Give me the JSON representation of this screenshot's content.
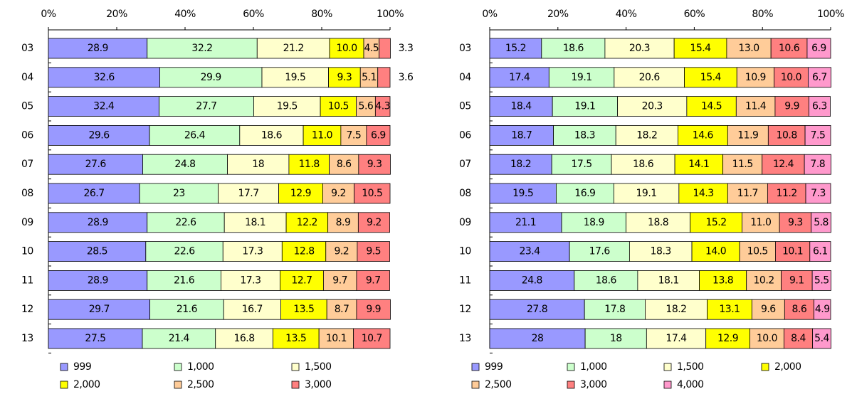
{
  "chart_data": [
    {
      "type": "stacked_barh",
      "categories": [
        "03",
        "04",
        "05",
        "06",
        "07",
        "08",
        "09",
        "10",
        "11",
        "12",
        "13"
      ],
      "xlim": [
        0,
        100
      ],
      "xticks": [
        {
          "value": 0,
          "label": "0%"
        },
        {
          "value": 20,
          "label": "20%"
        },
        {
          "value": 40,
          "label": "40%"
        },
        {
          "value": 60,
          "label": "60%"
        },
        {
          "value": 80,
          "label": "80%"
        },
        {
          "value": 100,
          "label": "100%"
        }
      ],
      "series": [
        {
          "name": "999",
          "color": "#9999ff",
          "values": [
            28.9,
            32.6,
            32.4,
            29.6,
            27.6,
            26.7,
            28.9,
            28.5,
            28.9,
            29.7,
            27.5
          ]
        },
        {
          "name": "1,000",
          "color": "#ccffcc",
          "values": [
            32.2,
            29.9,
            27.7,
            26.4,
            24.8,
            23.0,
            22.6,
            22.6,
            21.6,
            21.6,
            21.4
          ]
        },
        {
          "name": "1,500",
          "color": "#ffffcc",
          "values": [
            21.2,
            19.5,
            19.5,
            18.6,
            18.0,
            17.7,
            18.1,
            17.3,
            17.3,
            16.7,
            16.8
          ]
        },
        {
          "name": "2,000",
          "color": "#ffff00",
          "values": [
            10.0,
            9.3,
            10.5,
            11.0,
            11.8,
            12.9,
            12.2,
            12.8,
            12.7,
            13.5,
            13.5
          ],
          "value_labels": [
            "10.0",
            "9.3",
            "10.5",
            "11.0",
            "11.8",
            "12.9",
            "12.2",
            "12.8",
            "12.7",
            "13.5",
            "13.5"
          ]
        },
        {
          "name": "2,500",
          "color": "#ffcc99",
          "values": [
            4.5,
            5.1,
            5.6,
            7.5,
            8.6,
            9.2,
            8.9,
            9.2,
            9.7,
            8.7,
            10.1
          ]
        },
        {
          "name": "3,000",
          "color": "#ff8080",
          "values": [
            3.3,
            3.6,
            4.3,
            6.9,
            9.3,
            10.5,
            9.2,
            9.5,
            9.7,
            9.9,
            10.7
          ]
        }
      ]
    },
    {
      "type": "stacked_barh",
      "categories": [
        "03",
        "04",
        "05",
        "06",
        "07",
        "08",
        "09",
        "10",
        "11",
        "12",
        "13"
      ],
      "xlim": [
        0,
        100
      ],
      "xticks": [
        {
          "value": 0,
          "label": "0%"
        },
        {
          "value": 20,
          "label": "20%"
        },
        {
          "value": 40,
          "label": "40%"
        },
        {
          "value": 60,
          "label": "60%"
        },
        {
          "value": 80,
          "label": "80%"
        },
        {
          "value": 100,
          "label": "100%"
        }
      ],
      "series": [
        {
          "name": "999",
          "color": "#9999ff",
          "values": [
            15.2,
            17.4,
            18.4,
            18.7,
            18.2,
            19.5,
            21.1,
            23.4,
            24.8,
            27.8,
            28.0
          ]
        },
        {
          "name": "1,000",
          "color": "#ccffcc",
          "values": [
            18.6,
            19.1,
            19.1,
            18.3,
            17.5,
            16.9,
            18.9,
            17.6,
            18.6,
            17.8,
            18.0
          ]
        },
        {
          "name": "1,500",
          "color": "#ffffcc",
          "values": [
            20.3,
            20.6,
            20.3,
            18.2,
            18.6,
            19.1,
            18.8,
            18.3,
            18.1,
            18.2,
            17.4
          ]
        },
        {
          "name": "2,000",
          "color": "#ffff00",
          "values": [
            15.4,
            15.4,
            14.5,
            14.6,
            14.1,
            14.3,
            15.2,
            14.0,
            13.8,
            13.1,
            12.9
          ],
          "value_labels": [
            "15.4",
            "15.4",
            "14.5",
            "14.6",
            "14.1",
            "14.3",
            "15.2",
            "14.0",
            "13.8",
            "13.1",
            "12.9"
          ]
        },
        {
          "name": "2,500",
          "color": "#ffcc99",
          "values": [
            13.0,
            10.9,
            11.4,
            11.9,
            11.5,
            11.7,
            11.0,
            10.5,
            10.2,
            9.6,
            10.0
          ],
          "value_labels": [
            "13.0",
            "10.9",
            "11.4",
            "11.9",
            "11.5",
            "11.7",
            "11.0",
            "10.5",
            "10.2",
            "9.6",
            "10.0"
          ]
        },
        {
          "name": "3,000",
          "color": "#ff8080",
          "values": [
            10.6,
            10.0,
            9.9,
            10.8,
            12.4,
            11.2,
            9.3,
            10.1,
            9.1,
            8.6,
            8.4
          ],
          "value_labels": [
            "10.6",
            "10.0",
            "9.9",
            "10.8",
            "12.4",
            "11.2",
            "9.3",
            "10.1",
            "9.1",
            "8.6",
            "8.4"
          ]
        },
        {
          "name": "4,000",
          "color": "#ff99cc",
          "values": [
            6.9,
            6.7,
            6.3,
            7.5,
            7.8,
            7.3,
            5.8,
            6.1,
            5.5,
            4.9,
            5.4
          ]
        }
      ]
    }
  ]
}
